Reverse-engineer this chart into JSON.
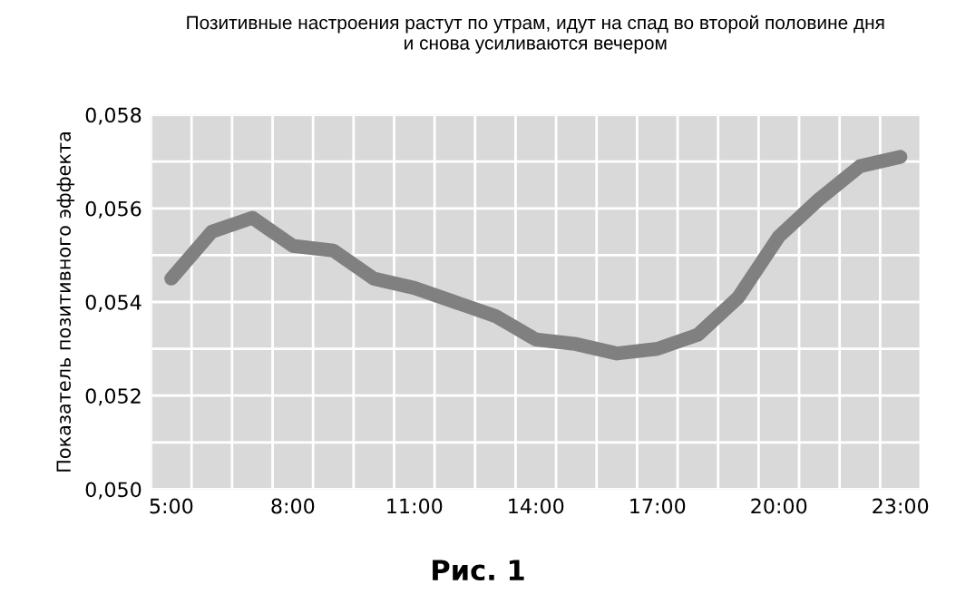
{
  "chart_data": {
    "type": "line",
    "title": "Позитивные настроения растут по утрам, идут на спад во второй половине дня\nи снова усиливаются вечером",
    "ylabel": "Показатель позитивного эффекта",
    "categories": [
      "5:00",
      null,
      null,
      "8:00",
      null,
      null,
      "11:00",
      null,
      null,
      "14:00",
      null,
      null,
      "17:00",
      null,
      null,
      "20:00",
      null,
      null,
      "23:00"
    ],
    "series": [
      {
        "color": "#808080",
        "values": [
          0.0545,
          0.0555,
          0.0558,
          0.0552,
          0.0551,
          0.0545,
          0.0543,
          0.054,
          0.0537,
          0.0532,
          0.0531,
          0.0529,
          0.053,
          0.0533,
          0.0541,
          0.0554,
          0.0562,
          0.0569,
          0.0571
        ]
      }
    ],
    "ylim": [
      0.05,
      0.058
    ],
    "yticks": [
      {
        "value": 0.05,
        "label": "0,050"
      },
      {
        "value": 0.051,
        "label": null
      },
      {
        "value": 0.052,
        "label": "0,052"
      },
      {
        "value": 0.053,
        "label": null
      },
      {
        "value": 0.054,
        "label": "0,054"
      },
      {
        "value": 0.055,
        "label": null
      },
      {
        "value": 0.056,
        "label": "0,056"
      },
      {
        "value": 0.057,
        "label": null
      },
      {
        "value": 0.058,
        "label": "0,058"
      }
    ],
    "grid": true,
    "marker": "none",
    "line_style": "solid",
    "annotations": [
      "Рис. 1"
    ]
  }
}
